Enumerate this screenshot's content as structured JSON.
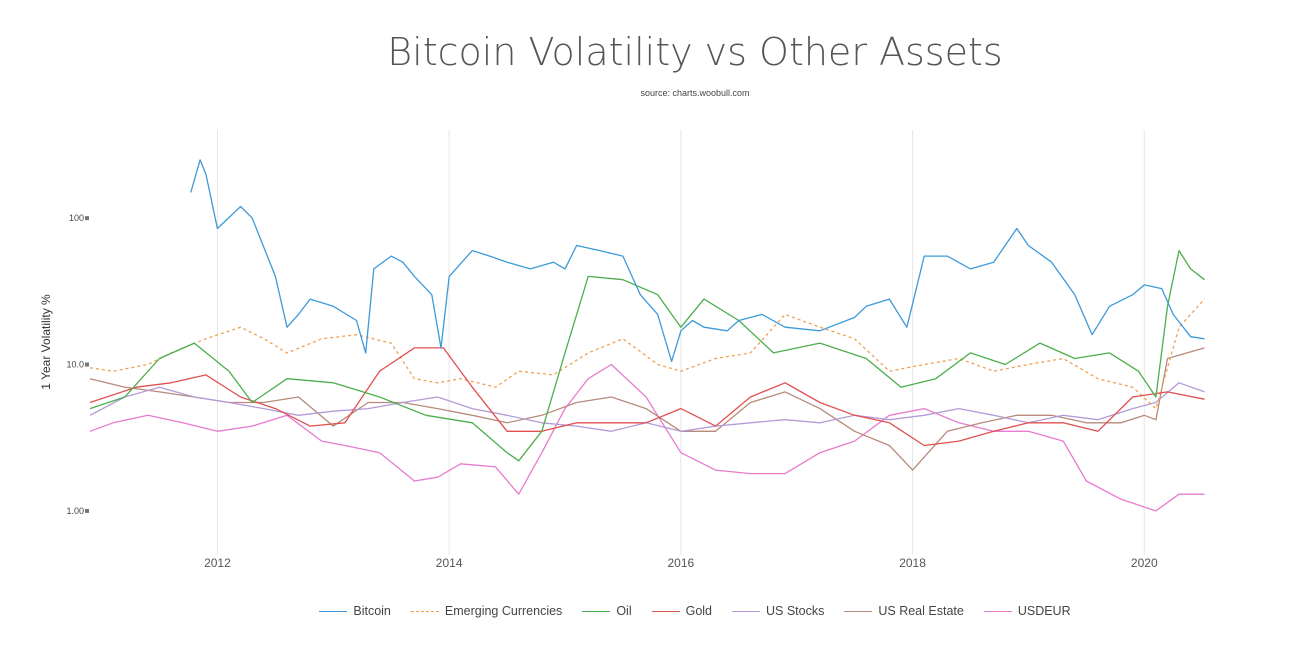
{
  "chart_data": {
    "type": "line",
    "title": "Bitcoin Volatility vs Other Assets",
    "subtitle": "source: charts.woobull.com",
    "ylabel": "1 Year Volatility %",
    "xlabel": "",
    "y_scale": "log",
    "ylim": [
      0.5,
      400
    ],
    "xlim": [
      2010.9,
      2020.55
    ],
    "y_ticks": [
      1,
      10,
      100
    ],
    "y_tick_labels": [
      "1.00",
      "10.0",
      "100"
    ],
    "x_ticks": [
      2012,
      2014,
      2016,
      2018,
      2020
    ],
    "x_tick_labels": [
      "2012",
      "2014",
      "2016",
      "2018",
      "2020"
    ],
    "grid": "vertical only",
    "legend": "bottom",
    "series": [
      {
        "name": "Bitcoin",
        "color": "#3d9ad9",
        "dash": "solid",
        "x": [
          2011.77,
          2011.85,
          2011.9,
          2012.0,
          2012.2,
          2012.3,
          2012.5,
          2012.6,
          2012.7,
          2012.8,
          2013.0,
          2013.2,
          2013.28,
          2013.35,
          2013.5,
          2013.6,
          2013.7,
          2013.85,
          2013.93,
          2014.0,
          2014.2,
          2014.35,
          2014.5,
          2014.7,
          2014.9,
          2015.0,
          2015.1,
          2015.3,
          2015.5,
          2015.65,
          2015.8,
          2015.92,
          2016.0,
          2016.1,
          2016.2,
          2016.4,
          2016.5,
          2016.7,
          2016.9,
          2017.2,
          2017.5,
          2017.6,
          2017.8,
          2017.95,
          2018.0,
          2018.1,
          2018.3,
          2018.5,
          2018.7,
          2018.9,
          2019.0,
          2019.2,
          2019.4,
          2019.55,
          2019.7,
          2019.9,
          2020.0,
          2020.15,
          2020.25,
          2020.4,
          2020.52
        ],
        "values": [
          150,
          250,
          200,
          85,
          120,
          100,
          40,
          18,
          22,
          28,
          25,
          20,
          12,
          45,
          55,
          50,
          40,
          30,
          13,
          40,
          60,
          55,
          50,
          45,
          50,
          45,
          65,
          60,
          55,
          30,
          22,
          10.5,
          17,
          20,
          18,
          17,
          20,
          22,
          18,
          17,
          21,
          25,
          28,
          18,
          26,
          55,
          55,
          45,
          50,
          85,
          65,
          50,
          30,
          16,
          25,
          30,
          35,
          33,
          22,
          15.5,
          15
        ]
      },
      {
        "name": "Emerging Currencies",
        "color": "#f0a050",
        "dash": "dashed",
        "x": [
          2010.9,
          2011.1,
          2011.4,
          2011.6,
          2011.9,
          2012.2,
          2012.4,
          2012.6,
          2012.9,
          2013.2,
          2013.5,
          2013.7,
          2013.9,
          2014.1,
          2014.4,
          2014.6,
          2014.9,
          2015.2,
          2015.5,
          2015.8,
          2016.0,
          2016.3,
          2016.6,
          2016.9,
          2017.2,
          2017.5,
          2017.8,
          2018.1,
          2018.4,
          2018.7,
          2019.0,
          2019.3,
          2019.6,
          2019.9,
          2020.1,
          2020.3,
          2020.52
        ],
        "values": [
          9.5,
          9,
          10,
          12,
          15,
          18,
          15,
          12,
          15,
          16,
          14,
          8,
          7.5,
          8,
          7,
          9,
          8.5,
          12,
          15,
          10,
          9,
          11,
          12,
          22,
          18,
          15,
          9,
          10,
          11,
          9,
          10,
          11,
          8,
          7,
          5,
          18,
          28
        ]
      },
      {
        "name": "Oil",
        "color": "#4cae4c",
        "dash": "solid",
        "x": [
          2010.9,
          2011.2,
          2011.5,
          2011.8,
          2012.1,
          2012.3,
          2012.6,
          2013.0,
          2013.4,
          2013.8,
          2014.2,
          2014.5,
          2014.6,
          2014.8,
          2015.0,
          2015.2,
          2015.5,
          2015.8,
          2016.0,
          2016.2,
          2016.5,
          2016.8,
          2017.2,
          2017.6,
          2017.9,
          2018.2,
          2018.5,
          2018.8,
          2019.1,
          2019.4,
          2019.7,
          2019.95,
          2020.1,
          2020.2,
          2020.3,
          2020.4,
          2020.52
        ],
        "values": [
          5,
          6,
          11,
          14,
          9,
          5.5,
          8,
          7.5,
          6,
          4.5,
          4,
          2.5,
          2.2,
          3.5,
          12,
          40,
          38,
          30,
          18,
          28,
          20,
          12,
          14,
          11,
          7,
          8,
          12,
          10,
          14,
          11,
          12,
          9,
          6,
          25,
          60,
          45,
          38
        ]
      },
      {
        "name": "Gold",
        "color": "#e0504f",
        "dash": "solid",
        "x": [
          2010.9,
          2011.3,
          2011.6,
          2011.9,
          2012.2,
          2012.5,
          2012.8,
          2013.1,
          2013.4,
          2013.7,
          2013.95,
          2014.2,
          2014.5,
          2014.8,
          2015.1,
          2015.4,
          2015.7,
          2016.0,
          2016.3,
          2016.6,
          2016.9,
          2017.2,
          2017.5,
          2017.8,
          2018.1,
          2018.4,
          2018.7,
          2019.0,
          2019.3,
          2019.6,
          2019.9,
          2020.2,
          2020.52
        ],
        "values": [
          5.5,
          7,
          7.5,
          8.5,
          6,
          5,
          3.8,
          4,
          9,
          13,
          13,
          7,
          3.5,
          3.5,
          4,
          4,
          4,
          5,
          3.8,
          6,
          7.5,
          5.5,
          4.5,
          4,
          2.8,
          3,
          3.5,
          4,
          4,
          3.5,
          6,
          6.5,
          5.8
        ]
      },
      {
        "name": "US Stocks",
        "color": "#b49bd8",
        "dash": "solid",
        "x": [
          2010.9,
          2011.2,
          2011.5,
          2011.8,
          2012.1,
          2012.4,
          2012.7,
          2013.0,
          2013.3,
          2013.6,
          2013.9,
          2014.2,
          2014.5,
          2014.8,
          2015.1,
          2015.4,
          2015.7,
          2016.0,
          2016.3,
          2016.6,
          2016.9,
          2017.2,
          2017.5,
          2017.8,
          2018.1,
          2018.4,
          2018.7,
          2019.0,
          2019.3,
          2019.6,
          2019.9,
          2020.1,
          2020.3,
          2020.52
        ],
        "values": [
          4.5,
          6,
          7,
          6,
          5.5,
          5,
          4.5,
          4.8,
          5,
          5.5,
          6,
          5,
          4.5,
          4,
          3.8,
          3.5,
          4,
          3.5,
          3.8,
          4,
          4.2,
          4,
          4.5,
          4.2,
          4.5,
          5,
          4.5,
          4,
          4.5,
          4.2,
          5,
          5.5,
          7.5,
          6.5
        ]
      },
      {
        "name": "US Real Estate",
        "color": "#b88a7a",
        "dash": "solid",
        "x": [
          2010.9,
          2011.2,
          2011.5,
          2011.8,
          2012.1,
          2012.4,
          2012.7,
          2013.0,
          2013.3,
          2013.6,
          2013.9,
          2014.2,
          2014.5,
          2014.8,
          2015.1,
          2015.4,
          2015.7,
          2016.0,
          2016.3,
          2016.6,
          2016.9,
          2017.2,
          2017.5,
          2017.8,
          2018.0,
          2018.3,
          2018.6,
          2018.9,
          2019.2,
          2019.5,
          2019.8,
          2020.0,
          2020.1,
          2020.2,
          2020.52
        ],
        "values": [
          8,
          7,
          6.5,
          6,
          5.5,
          5.5,
          6,
          3.8,
          5.5,
          5.5,
          5,
          4.5,
          4,
          4.5,
          5.5,
          6,
          5,
          3.5,
          3.5,
          5.5,
          6.5,
          5,
          3.5,
          2.8,
          1.9,
          3.5,
          4,
          4.5,
          4.5,
          4,
          4,
          4.5,
          4.2,
          11,
          13
        ]
      },
      {
        "name": "USDEUR",
        "color": "#e87bd0",
        "dash": "solid",
        "x": [
          2010.9,
          2011.1,
          2011.4,
          2011.7,
          2012.0,
          2012.3,
          2012.6,
          2012.9,
          2013.1,
          2013.4,
          2013.7,
          2013.9,
          2014.1,
          2014.4,
          2014.6,
          2014.8,
          2015.0,
          2015.2,
          2015.4,
          2015.7,
          2016.0,
          2016.3,
          2016.6,
          2016.9,
          2017.2,
          2017.5,
          2017.8,
          2018.1,
          2018.4,
          2018.7,
          2019.0,
          2019.3,
          2019.5,
          2019.8,
          2020.1,
          2020.3,
          2020.52
        ],
        "values": [
          3.5,
          4,
          4.5,
          4,
          3.5,
          3.8,
          4.5,
          3,
          2.8,
          2.5,
          1.6,
          1.7,
          2.1,
          2,
          1.3,
          2.5,
          5,
          8,
          10,
          6,
          2.5,
          1.9,
          1.8,
          1.8,
          2.5,
          3,
          4.5,
          5,
          4,
          3.5,
          3.5,
          3,
          1.6,
          1.2,
          1.0,
          1.3,
          1.3
        ]
      }
    ]
  }
}
